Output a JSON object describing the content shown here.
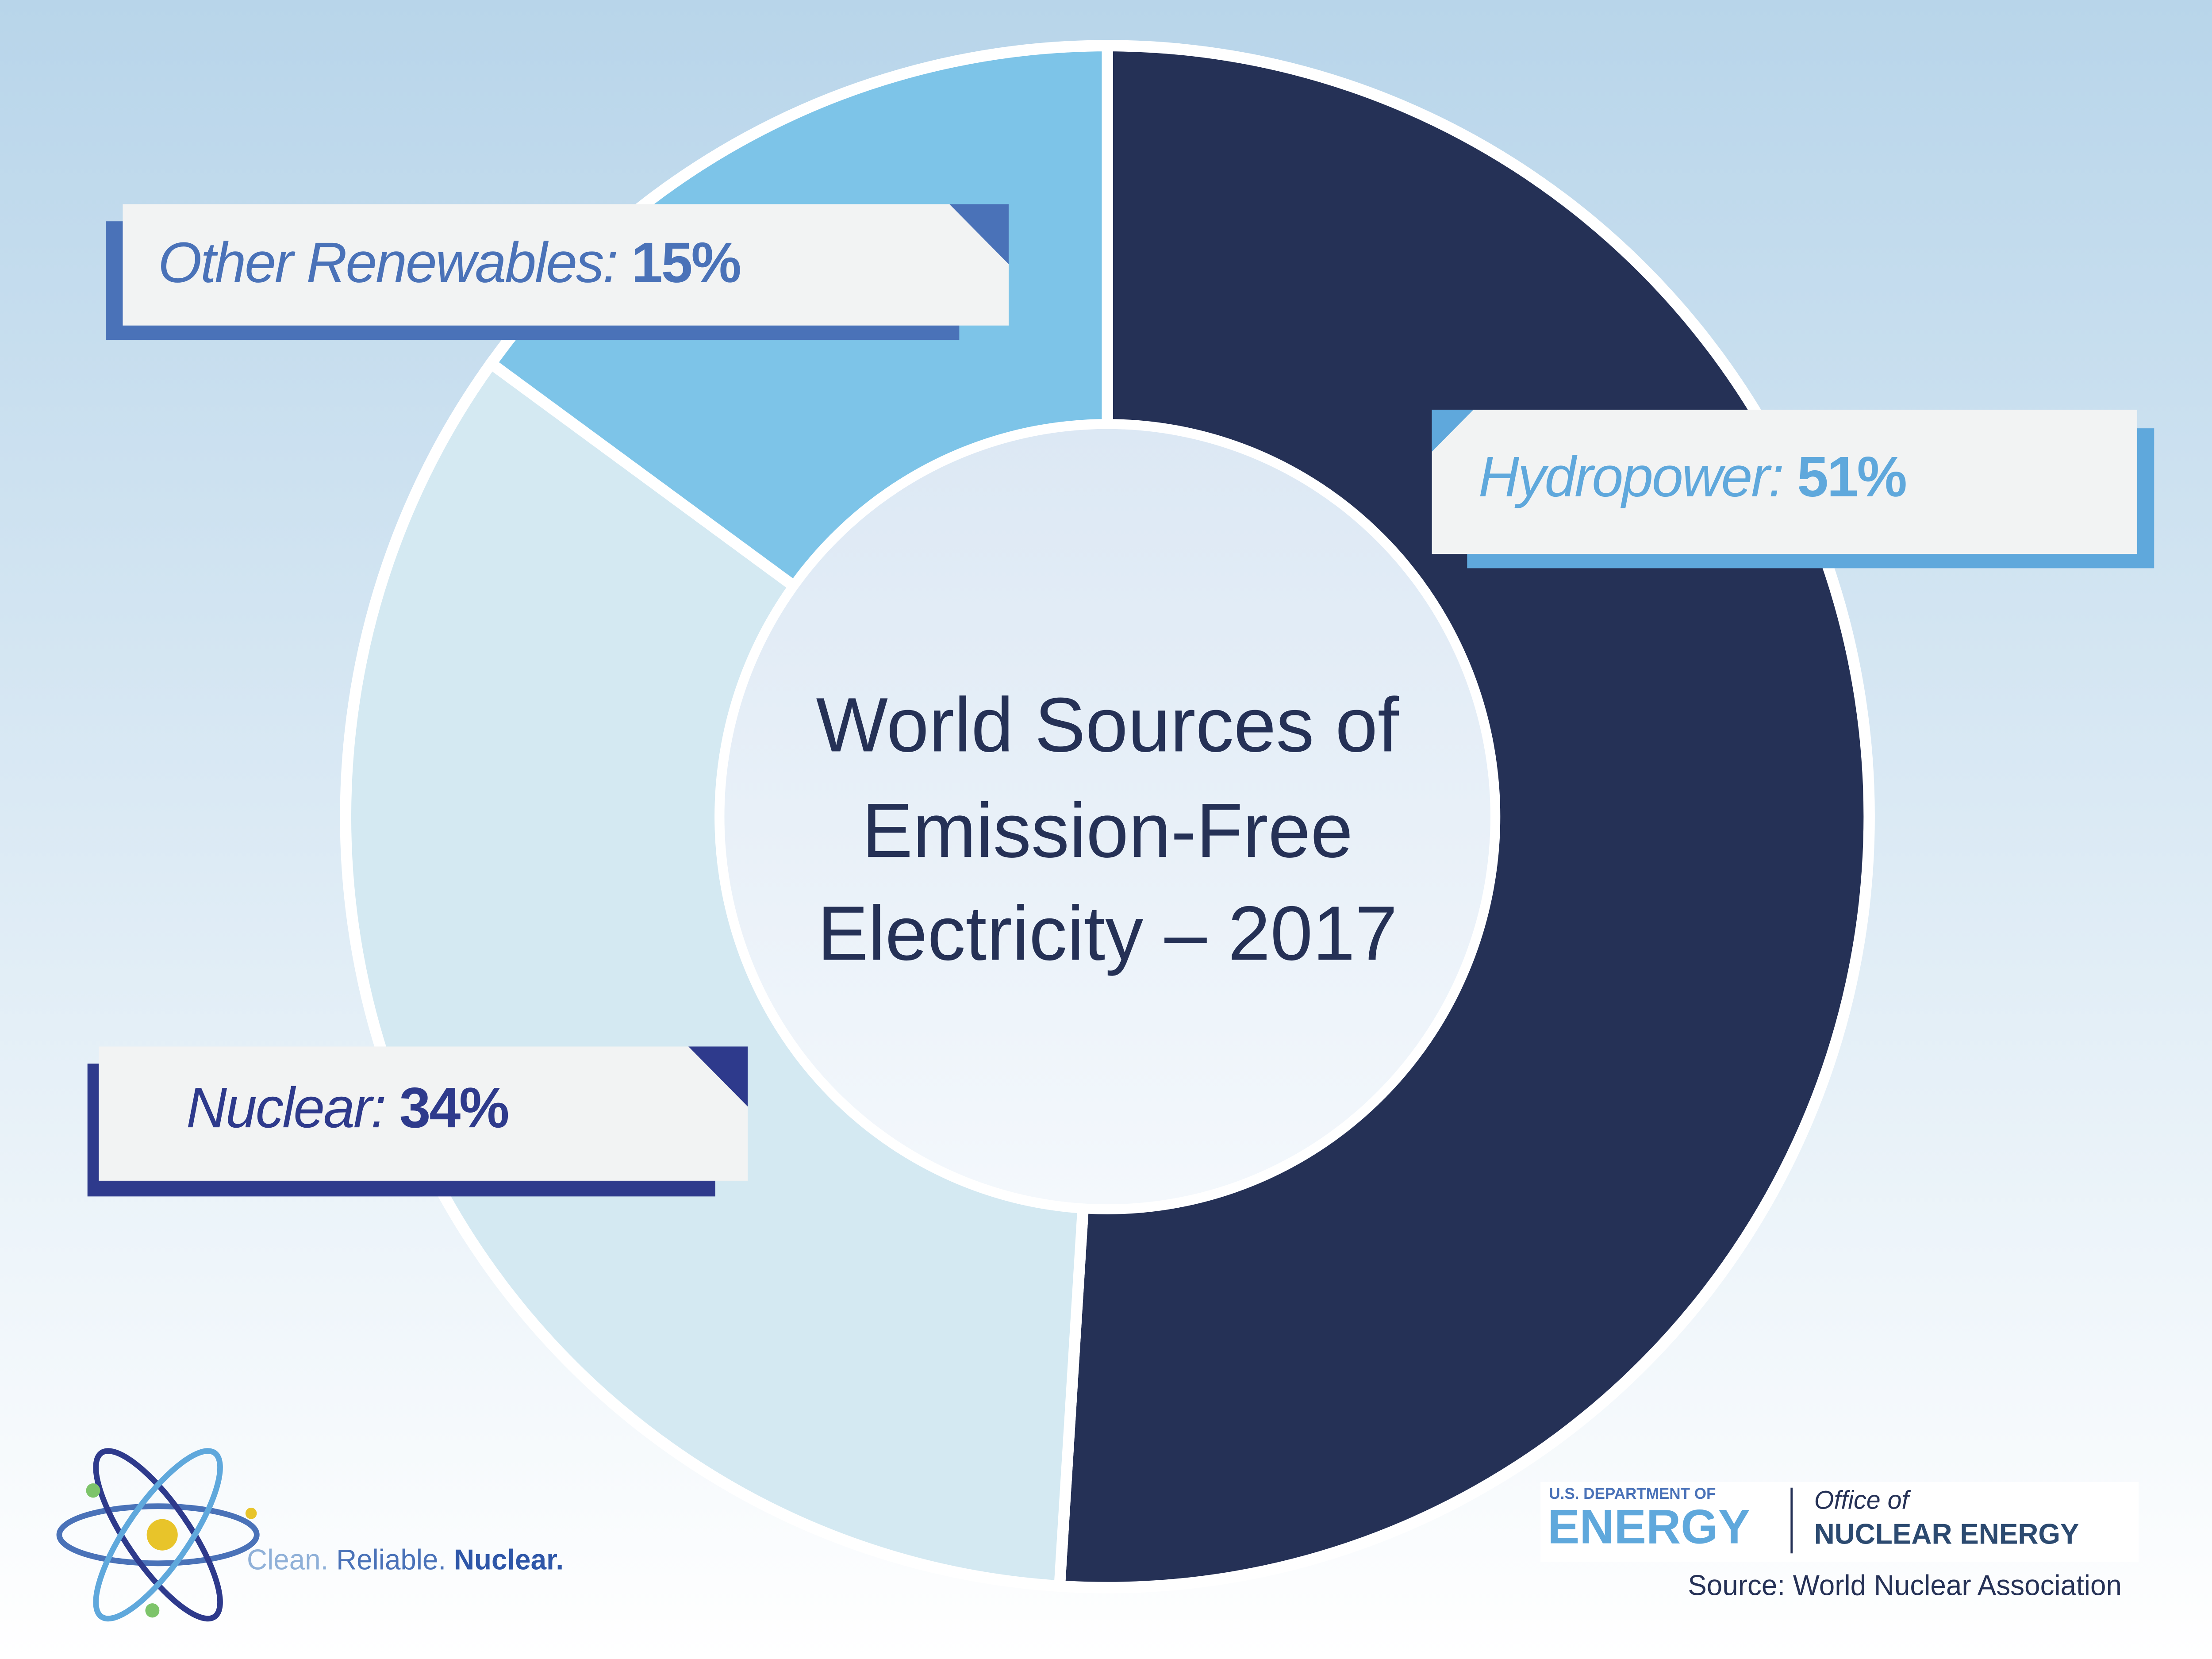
{
  "chart_data": {
    "type": "donut",
    "title": [
      "World Sources of",
      "Emission-Free",
      "Electricity – 2017"
    ],
    "categories": [
      "Hydropower:",
      "Nuclear:",
      "Other Renewables:"
    ],
    "values": [
      51,
      34,
      15
    ],
    "value_labels": [
      "51%",
      "34%",
      "15%"
    ],
    "colors": [
      "#253156",
      "#d4e9f2",
      "#7dc4e8"
    ],
    "label_colors": [
      "#5fa8dc",
      "#2e3a8c",
      "#4a72b8"
    ]
  },
  "branding": {
    "tagline": [
      "Clean.",
      "Reliable.",
      "Nuclear."
    ],
    "doe_line1": "U.S. DEPARTMENT OF",
    "doe_line2": "ENERGY",
    "office_line1": "Office of",
    "office_line2": "NUCLEAR ENERGY",
    "source": "Source: World Nuclear Association"
  }
}
